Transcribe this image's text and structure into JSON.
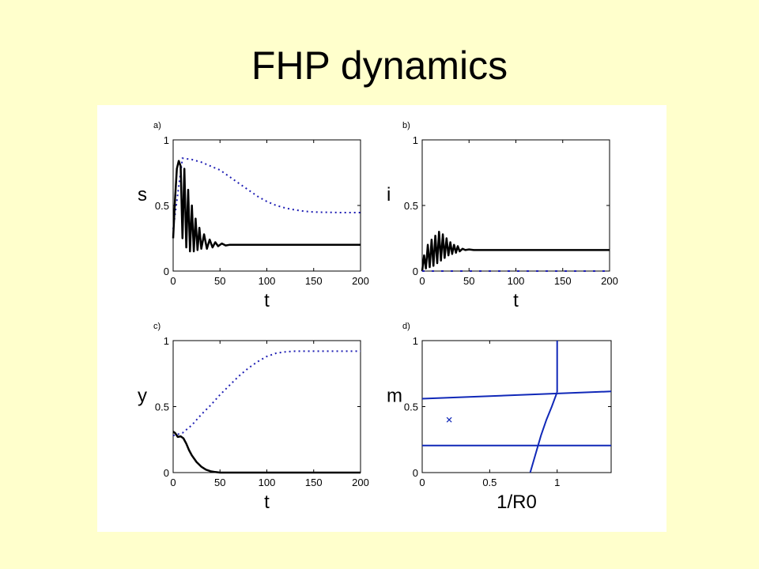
{
  "slide": {
    "title": "FHP dynamics"
  },
  "colors": {
    "solid": "#000000",
    "dotted": "#1f1fb4",
    "curve": "#1028b8"
  },
  "chart_data": [
    {
      "panel": "a)",
      "type": "line",
      "xlabel": "t",
      "ylabel": "s",
      "xlim": [
        0,
        200
      ],
      "ylim": [
        0,
        1
      ],
      "xticks": [
        "0",
        "50",
        "100",
        "150",
        "200"
      ],
      "yticks": [
        "0",
        "0.5",
        "1"
      ],
      "series": [
        {
          "style": "dotted",
          "x": [
            0,
            10,
            20,
            30,
            40,
            50,
            60,
            70,
            80,
            90,
            100,
            110,
            120,
            130,
            140,
            150,
            160,
            170,
            180,
            190,
            200
          ],
          "y": [
            0.32,
            0.86,
            0.85,
            0.83,
            0.8,
            0.77,
            0.72,
            0.67,
            0.62,
            0.57,
            0.53,
            0.5,
            0.48,
            0.466,
            0.456,
            0.45,
            0.448,
            0.447,
            0.446,
            0.446,
            0.446
          ]
        },
        {
          "style": "solid",
          "x": [
            0,
            2,
            4,
            6,
            8,
            10,
            12,
            14,
            16,
            18,
            20,
            22,
            24,
            26,
            28,
            30,
            33,
            36,
            39,
            42,
            45,
            48,
            52,
            56,
            60,
            70,
            80,
            100,
            150,
            200
          ],
          "y": [
            0.25,
            0.55,
            0.78,
            0.84,
            0.8,
            0.25,
            0.78,
            0.18,
            0.62,
            0.15,
            0.5,
            0.15,
            0.4,
            0.16,
            0.33,
            0.17,
            0.28,
            0.17,
            0.24,
            0.18,
            0.22,
            0.19,
            0.21,
            0.195,
            0.2,
            0.2,
            0.2,
            0.2,
            0.2,
            0.2
          ]
        }
      ]
    },
    {
      "panel": "b)",
      "type": "line",
      "xlabel": "t",
      "ylabel": "i",
      "xlim": [
        0,
        200
      ],
      "ylim": [
        0,
        1
      ],
      "xticks": [
        "0",
        "50",
        "100",
        "150",
        "200"
      ],
      "yticks": [
        "0",
        "0.5",
        "1"
      ],
      "series": [
        {
          "style": "solid",
          "x": [
            0,
            2,
            4,
            6,
            8,
            10,
            12,
            14,
            16,
            18,
            20,
            22,
            24,
            26,
            28,
            30,
            32,
            34,
            36,
            38,
            40,
            43,
            46,
            50,
            55,
            60,
            70,
            80,
            100,
            150,
            200
          ],
          "y": [
            0.0,
            0.12,
            0.02,
            0.2,
            0.03,
            0.24,
            0.04,
            0.27,
            0.06,
            0.3,
            0.08,
            0.28,
            0.1,
            0.25,
            0.12,
            0.22,
            0.13,
            0.2,
            0.14,
            0.19,
            0.15,
            0.17,
            0.16,
            0.165,
            0.16,
            0.16,
            0.16,
            0.16,
            0.16,
            0.16,
            0.16
          ]
        },
        {
          "style": "dotted",
          "x": [
            0,
            25,
            40,
            60,
            80,
            100,
            120,
            140,
            160,
            180,
            195
          ],
          "y": [
            0.0,
            0.0,
            0.0,
            0.0,
            0.0,
            0.0,
            0.0,
            0.0,
            0.0,
            0.0,
            0.0
          ]
        }
      ]
    },
    {
      "panel": "c)",
      "type": "line",
      "xlabel": "t",
      "ylabel": "y",
      "xlim": [
        0,
        200
      ],
      "ylim": [
        0,
        1
      ],
      "xticks": [
        "0",
        "50",
        "100",
        "150",
        "200"
      ],
      "yticks": [
        "0",
        "0.5",
        "1"
      ],
      "series": [
        {
          "style": "dotted",
          "x": [
            0,
            10,
            20,
            30,
            40,
            50,
            60,
            70,
            80,
            90,
            100,
            110,
            120,
            130,
            140,
            150,
            160,
            170,
            180,
            190,
            200
          ],
          "y": [
            0.28,
            0.3,
            0.36,
            0.44,
            0.51,
            0.59,
            0.66,
            0.73,
            0.79,
            0.84,
            0.88,
            0.905,
            0.915,
            0.92,
            0.92,
            0.92,
            0.92,
            0.92,
            0.92,
            0.92,
            0.92
          ]
        },
        {
          "style": "solid",
          "x": [
            0,
            2,
            5,
            8,
            11,
            14,
            17,
            20,
            25,
            30,
            35,
            40,
            45,
            50,
            60,
            80,
            100,
            150,
            200
          ],
          "y": [
            0.31,
            0.3,
            0.27,
            0.275,
            0.26,
            0.22,
            0.17,
            0.13,
            0.08,
            0.045,
            0.022,
            0.01,
            0.004,
            0.0,
            0.0,
            0.0,
            0.0,
            0.0,
            0.0
          ]
        }
      ]
    },
    {
      "panel": "d)",
      "type": "line",
      "xlabel": "1/R0",
      "ylabel": "m",
      "xlim": [
        0,
        1.4
      ],
      "ylim": [
        0,
        1
      ],
      "xticks": [
        "0",
        "0.5",
        "1"
      ],
      "xtick_values": [
        0,
        0.5,
        1
      ],
      "yticks": [
        "0",
        "0.5",
        "1"
      ],
      "series": [
        {
          "style": "solid",
          "x": [
            0,
            1.4
          ],
          "y": [
            0.56,
            0.615
          ]
        },
        {
          "style": "solid",
          "x": [
            0,
            1.4
          ],
          "y": [
            0.205,
            0.205
          ]
        },
        {
          "style": "solid",
          "x": [
            1.0,
            1.0
          ],
          "y": [
            0.61,
            1.0
          ]
        },
        {
          "style": "solid",
          "x": [
            0.8,
            0.84,
            0.88,
            0.92,
            0.96,
            1.0
          ],
          "y": [
            0.0,
            0.14,
            0.28,
            0.4,
            0.5,
            0.61
          ]
        }
      ],
      "markers": [
        {
          "x": 0.2,
          "y": 0.4,
          "symbol": "x"
        }
      ]
    }
  ]
}
